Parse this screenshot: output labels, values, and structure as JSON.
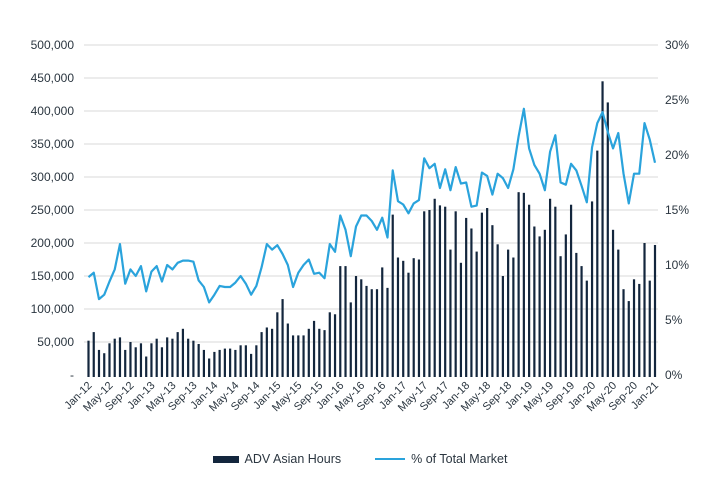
{
  "chart_data": {
    "type": "bar",
    "title": "",
    "xlabel": "",
    "ylabel": "",
    "y2label": "",
    "ylim": [
      0,
      500000
    ],
    "y2lim": [
      0,
      30
    ],
    "grid": true,
    "legend_position": "bottom",
    "left_ticks": [
      "-",
      "50,000",
      "100,000",
      "150,000",
      "200,000",
      "250,000",
      "300,000",
      "350,000",
      "400,000",
      "450,000",
      "500,000"
    ],
    "right_ticks": [
      "0%",
      "5%",
      "10%",
      "15%",
      "20%",
      "25%",
      "30%"
    ],
    "x_tick_labels": [
      "Jan-12",
      "May-12",
      "Sep-12",
      "Jan-13",
      "May-13",
      "Sep-13",
      "Jan-14",
      "May-14",
      "Sep-14",
      "Jan-15",
      "May-15",
      "Sep-15",
      "Jan-16",
      "May-16",
      "Sep-16",
      "Jan-17",
      "May-17",
      "Sep-17",
      "Jan-18",
      "May-18",
      "Sep-18",
      "Jan-19",
      "May-19",
      "Sep-19",
      "Jan-20",
      "May-20",
      "Sep-20",
      "Jan-21"
    ],
    "x_tick_every": 4,
    "series": [
      {
        "name": "ADV Asian Hours",
        "type": "bar",
        "axis": "left",
        "color": "#13263d",
        "values": [
          52000,
          65000,
          38000,
          33000,
          48000,
          55000,
          57000,
          38000,
          50000,
          42000,
          48000,
          28000,
          48000,
          55000,
          42000,
          57000,
          55000,
          65000,
          70000,
          55000,
          52000,
          47000,
          38000,
          25000,
          35000,
          38000,
          40000,
          40000,
          38000,
          45000,
          45000,
          32000,
          45000,
          65000,
          72000,
          70000,
          95000,
          115000,
          78000,
          60000,
          60000,
          60000,
          70000,
          82000,
          70000,
          68000,
          95000,
          92000,
          165000,
          165000,
          110000,
          150000,
          145000,
          135000,
          130000,
          130000,
          163000,
          132000,
          243000,
          178000,
          173000,
          155000,
          177000,
          175000,
          248000,
          250000,
          267000,
          257000,
          255000,
          190000,
          248000,
          170000,
          238000,
          222000,
          187000,
          246000,
          253000,
          227000,
          198000,
          150000,
          190000,
          178000,
          277000,
          276000,
          258000,
          225000,
          210000,
          220000,
          267000,
          255000,
          180000,
          213000,
          258000,
          185000,
          165000,
          143000,
          263000,
          340000,
          445000,
          413000,
          220000,
          190000,
          130000,
          112000,
          145000,
          138000,
          200000,
          143000,
          197000
        ]
      },
      {
        "name": "% of Total Market",
        "type": "line",
        "axis": "right",
        "color": "#2aa3dc",
        "values": [
          8.9,
          9.3,
          6.9,
          7.3,
          8.5,
          9.6,
          11.9,
          8.3,
          9.6,
          9.0,
          9.9,
          7.6,
          9.4,
          9.9,
          8.5,
          10.0,
          9.6,
          10.2,
          10.4,
          10.4,
          10.3,
          8.6,
          8.0,
          6.6,
          7.3,
          8.1,
          8.0,
          8.0,
          8.4,
          9.0,
          8.3,
          7.3,
          8.1,
          9.8,
          11.9,
          11.4,
          11.8,
          11.0,
          10.0,
          8.0,
          9.3,
          10.0,
          10.5,
          9.2,
          9.3,
          8.8,
          11.9,
          11.2,
          14.5,
          13.2,
          10.8,
          13.5,
          14.5,
          14.5,
          14.0,
          13.2,
          14.3,
          12.5,
          18.6,
          15.8,
          15.5,
          14.7,
          15.6,
          15.9,
          19.7,
          18.8,
          19.2,
          17.0,
          18.7,
          16.8,
          18.9,
          17.4,
          17.5,
          15.3,
          15.4,
          18.4,
          18.1,
          16.4,
          18.3,
          17.9,
          17.0,
          18.7,
          21.7,
          24.2,
          20.6,
          19.1,
          18.3,
          16.8,
          20.3,
          21.8,
          17.5,
          17.3,
          19.2,
          18.6,
          17.2,
          15.7,
          20.7,
          22.9,
          23.9,
          22.1,
          20.6,
          22.0,
          18.3,
          15.6,
          18.3,
          18.3,
          22.9,
          21.4,
          19.3
        ]
      }
    ]
  },
  "legend": {
    "bar_label": "ADV Asian Hours",
    "line_label": "% of Total Market"
  }
}
